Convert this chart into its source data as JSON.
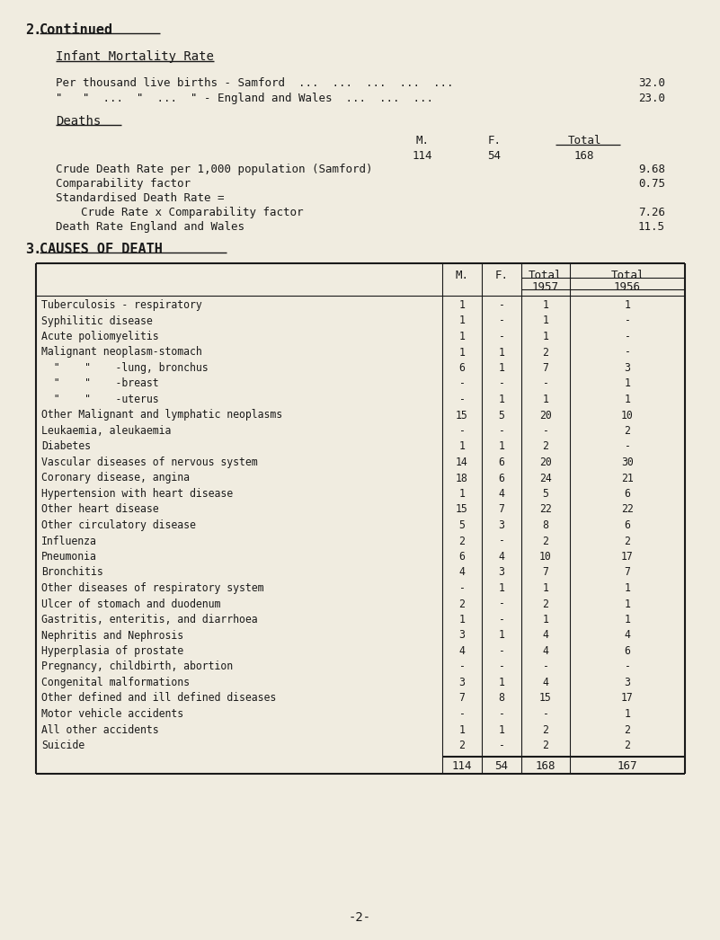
{
  "bg_color": "#f0ece0",
  "text_color": "#1a1a1a",
  "causes": [
    {
      "name": "Tuberculosis - respiratory",
      "m": "1",
      "f": "-",
      "t57": "1",
      "t56": "1"
    },
    {
      "name": "Syphilitic disease",
      "m": "1",
      "f": "-",
      "t57": "1",
      "t56": "-"
    },
    {
      "name": "Acute poliomyelitis",
      "m": "1",
      "f": "-",
      "t57": "1",
      "t56": "-"
    },
    {
      "name": "Malignant neoplasm-stomach",
      "m": "1",
      "f": "1",
      "t57": "2",
      "t56": "-"
    },
    {
      "name": "  \"    \"    -lung, bronchus",
      "m": "6",
      "f": "1",
      "t57": "7",
      "t56": "3"
    },
    {
      "name": "  \"    \"    -breast",
      "m": "-",
      "f": "-",
      "t57": "-",
      "t56": "1"
    },
    {
      "name": "  \"    \"    -uterus",
      "m": "-",
      "f": "1",
      "t57": "1",
      "t56": "1"
    },
    {
      "name": "Other Malignant and lymphatic neoplasms",
      "m": "15",
      "f": "5",
      "t57": "20",
      "t56": "10"
    },
    {
      "name": "Leukaemia, aleukaemia",
      "m": "-",
      "f": "-",
      "t57": "-",
      "t56": "2"
    },
    {
      "name": "Diabetes",
      "m": "1",
      "f": "1",
      "t57": "2",
      "t56": "-"
    },
    {
      "name": "Vascular diseases of nervous system",
      "m": "14",
      "f": "6",
      "t57": "20",
      "t56": "30"
    },
    {
      "name": "Coronary disease, angina",
      "m": "18",
      "f": "6",
      "t57": "24",
      "t56": "21"
    },
    {
      "name": "Hypertension with heart disease",
      "m": "1",
      "f": "4",
      "t57": "5",
      "t56": "6"
    },
    {
      "name": "Other heart disease",
      "m": "15",
      "f": "7",
      "t57": "22",
      "t56": "22"
    },
    {
      "name": "Other circulatory disease",
      "m": "5",
      "f": "3",
      "t57": "8",
      "t56": "6"
    },
    {
      "name": "Influenza",
      "m": "2",
      "f": "-",
      "t57": "2",
      "t56": "2"
    },
    {
      "name": "Pneumonia",
      "m": "6",
      "f": "4",
      "t57": "10",
      "t56": "17"
    },
    {
      "name": "Bronchitis",
      "m": "4",
      "f": "3",
      "t57": "7",
      "t56": "7"
    },
    {
      "name": "Other diseases of respiratory system",
      "m": "-",
      "f": "1",
      "t57": "1",
      "t56": "1"
    },
    {
      "name": "Ulcer of stomach and duodenum",
      "m": "2",
      "f": "-",
      "t57": "2",
      "t56": "1"
    },
    {
      "name": "Gastritis, enteritis, and diarrhoea",
      "m": "1",
      "f": "-",
      "t57": "1",
      "t56": "1"
    },
    {
      "name": "Nephritis and Nephrosis",
      "m": "3",
      "f": "1",
      "t57": "4",
      "t56": "4"
    },
    {
      "name": "Hyperplasia of prostate",
      "m": "4",
      "f": "-",
      "t57": "4",
      "t56": "6"
    },
    {
      "name": "Pregnancy, childbirth, abortion",
      "m": "-",
      "f": "-",
      "t57": "-",
      "t56": "-"
    },
    {
      "name": "Congenital malformations",
      "m": "3",
      "f": "1",
      "t57": "4",
      "t56": "3"
    },
    {
      "name": "Other defined and ill defined diseases",
      "m": "7",
      "f": "8",
      "t57": "15",
      "t56": "17"
    },
    {
      "name": "Motor vehicle accidents",
      "m": "-",
      "f": "-",
      "t57": "-",
      "t56": "1"
    },
    {
      "name": "All other accidents",
      "m": "1",
      "f": "1",
      "t57": "2",
      "t56": "2"
    },
    {
      "name": "Suicide",
      "m": "2",
      "f": "-",
      "t57": "2",
      "t56": "2"
    }
  ],
  "totals_row": {
    "m": "114",
    "f": "54",
    "t57": "168",
    "t56": "167"
  },
  "page_num": "-2-"
}
